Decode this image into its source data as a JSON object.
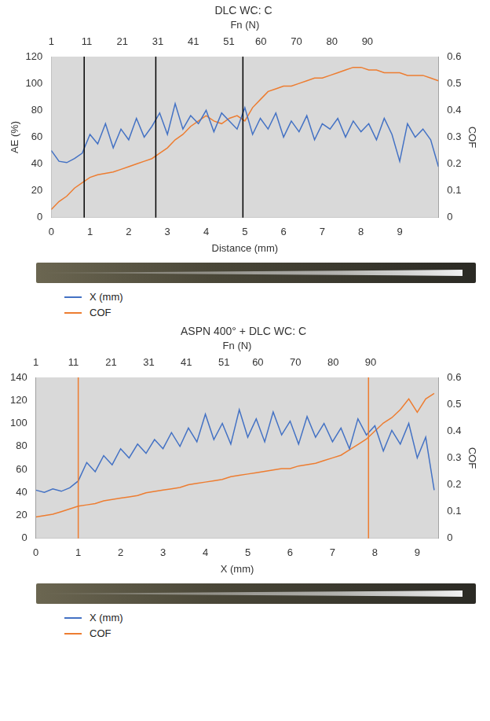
{
  "chart_data": [
    {
      "type": "line",
      "title": "DLC WC: C",
      "x_label": "Distance (mm)",
      "x2_label": "Fn (N)",
      "y_label": "AE (%)",
      "y2_label": "COF",
      "xlim": [
        0,
        10
      ],
      "xticks": [
        0,
        1,
        2,
        3,
        4,
        5,
        6,
        7,
        8,
        9
      ],
      "x2lim": [
        1,
        110
      ],
      "x2ticks": [
        1,
        11,
        21,
        31,
        41,
        51,
        60,
        70,
        80,
        90
      ],
      "ylim": [
        0,
        120
      ],
      "yticks": [
        0,
        20,
        40,
        60,
        80,
        100,
        120
      ],
      "y2lim": [
        0,
        0.6
      ],
      "y2ticks": [
        0,
        0.1,
        0.2,
        0.3,
        0.4,
        0.5,
        0.6
      ],
      "grid": false,
      "legend": "bottom",
      "vlines": {
        "values": [
          0.85,
          2.7,
          4.95
        ],
        "color": "#000000"
      },
      "x": [
        0,
        0.2,
        0.4,
        0.6,
        0.8,
        1.0,
        1.2,
        1.4,
        1.6,
        1.8,
        2.0,
        2.2,
        2.4,
        2.6,
        2.8,
        3.0,
        3.2,
        3.4,
        3.6,
        3.8,
        4.0,
        4.2,
        4.4,
        4.6,
        4.8,
        5.0,
        5.2,
        5.4,
        5.6,
        5.8,
        6.0,
        6.2,
        6.4,
        6.6,
        6.8,
        7.0,
        7.2,
        7.4,
        7.6,
        7.8,
        8.0,
        8.2,
        8.4,
        8.6,
        8.8,
        9.0,
        9.2,
        9.4,
        9.6,
        9.8,
        10.0
      ],
      "series": [
        {
          "name": "X (mm)",
          "color": "#4472c4",
          "values": [
            50,
            42,
            41,
            44,
            48,
            62,
            55,
            70,
            52,
            66,
            58,
            74,
            60,
            68,
            78,
            62,
            85,
            66,
            76,
            70,
            80,
            64,
            78,
            72,
            66,
            82,
            62,
            74,
            66,
            78,
            60,
            72,
            64,
            76,
            58,
            70,
            66,
            74,
            60,
            72,
            64,
            70,
            58,
            74,
            62,
            42,
            70,
            60,
            66,
            58,
            38
          ]
        },
        {
          "name": "COF",
          "color": "#ed7d31",
          "axis": "y2",
          "values": [
            0.03,
            0.06,
            0.08,
            0.11,
            0.13,
            0.15,
            0.16,
            0.165,
            0.17,
            0.18,
            0.19,
            0.2,
            0.21,
            0.22,
            0.24,
            0.26,
            0.29,
            0.31,
            0.34,
            0.36,
            0.38,
            0.36,
            0.35,
            0.37,
            0.38,
            0.36,
            0.41,
            0.44,
            0.47,
            0.48,
            0.49,
            0.49,
            0.5,
            0.51,
            0.52,
            0.52,
            0.53,
            0.54,
            0.55,
            0.56,
            0.56,
            0.55,
            0.55,
            0.54,
            0.54,
            0.54,
            0.53,
            0.53,
            0.53,
            0.52,
            0.51
          ]
        }
      ]
    },
    {
      "type": "line",
      "title": "ASPN 400° + DLC WC: C",
      "x_label": "X (mm)",
      "x2_label": "Fn (N)",
      "y2_label": "COF",
      "xlim": [
        0,
        9.5
      ],
      "xticks": [
        0,
        1,
        2,
        3,
        4,
        5,
        6,
        7,
        8,
        9
      ],
      "x2lim": [
        1,
        108
      ],
      "x2ticks": [
        1,
        11,
        21,
        31,
        41,
        51,
        60,
        70,
        80,
        90
      ],
      "ylim": [
        0,
        140
      ],
      "yticks": [
        0,
        20,
        40,
        60,
        80,
        100,
        120,
        140
      ],
      "y2lim": [
        0,
        0.6
      ],
      "y2ticks": [
        0,
        0.1,
        0.2,
        0.3,
        0.4,
        0.5,
        0.6
      ],
      "grid": false,
      "legend": "bottom",
      "vlines": {
        "values": [
          1.0,
          7.85
        ],
        "color": "#ed7d31"
      },
      "x": [
        0,
        0.2,
        0.4,
        0.6,
        0.8,
        1.0,
        1.2,
        1.4,
        1.6,
        1.8,
        2.0,
        2.2,
        2.4,
        2.6,
        2.8,
        3.0,
        3.2,
        3.4,
        3.6,
        3.8,
        4.0,
        4.2,
        4.4,
        4.6,
        4.8,
        5.0,
        5.2,
        5.4,
        5.6,
        5.8,
        6.0,
        6.2,
        6.4,
        6.6,
        6.8,
        7.0,
        7.2,
        7.4,
        7.6,
        7.8,
        8.0,
        8.2,
        8.4,
        8.6,
        8.8,
        9.0,
        9.2,
        9.4
      ],
      "series": [
        {
          "name": "X (mm)",
          "color": "#4472c4",
          "values": [
            42,
            40,
            43,
            41,
            44,
            50,
            66,
            58,
            72,
            64,
            78,
            70,
            82,
            74,
            86,
            78,
            92,
            80,
            96,
            84,
            108,
            86,
            100,
            82,
            112,
            88,
            104,
            84,
            110,
            90,
            102,
            82,
            106,
            88,
            100,
            84,
            96,
            78,
            104,
            90,
            98,
            76,
            94,
            82,
            100,
            70,
            88,
            42
          ]
        },
        {
          "name": "COF",
          "color": "#ed7d31",
          "axis": "y2",
          "values": [
            0.08,
            0.085,
            0.09,
            0.1,
            0.11,
            0.12,
            0.125,
            0.13,
            0.14,
            0.145,
            0.15,
            0.155,
            0.16,
            0.17,
            0.175,
            0.18,
            0.185,
            0.19,
            0.2,
            0.205,
            0.21,
            0.215,
            0.22,
            0.23,
            0.235,
            0.24,
            0.245,
            0.25,
            0.255,
            0.26,
            0.26,
            0.27,
            0.275,
            0.28,
            0.29,
            0.3,
            0.31,
            0.33,
            0.35,
            0.37,
            0.4,
            0.43,
            0.45,
            0.48,
            0.52,
            0.47,
            0.52,
            0.54
          ]
        }
      ]
    }
  ]
}
